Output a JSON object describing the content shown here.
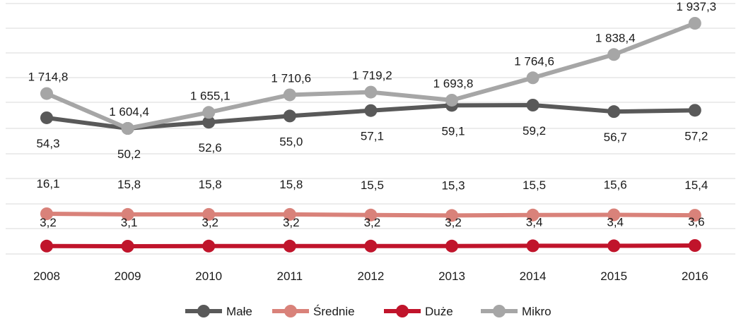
{
  "chart_data": {
    "type": "line",
    "title": "",
    "xlabel": "",
    "ylabel": "",
    "grid": true,
    "legend_position": "bottom",
    "categories": [
      "2008",
      "2009",
      "2010",
      "2011",
      "2012",
      "2013",
      "2014",
      "2015",
      "2016"
    ],
    "series": [
      {
        "name": "Małe",
        "color": "#595959",
        "values": [
          54.3,
          50.2,
          52.6,
          55.0,
          57.1,
          59.1,
          59.2,
          56.7,
          57.2
        ],
        "labels": [
          "54,3",
          "50,2",
          "52,6",
          "55,0",
          "57,1",
          "59,1",
          "59,2",
          "56,7",
          "57,2"
        ]
      },
      {
        "name": "Średnie",
        "color": "#d9827a",
        "values": [
          16.1,
          15.8,
          15.8,
          15.8,
          15.5,
          15.3,
          15.5,
          15.6,
          15.4
        ],
        "labels": [
          "16,1",
          "15,8",
          "15,8",
          "15,8",
          "15,5",
          "15,3",
          "15,5",
          "15,6",
          "15,4"
        ]
      },
      {
        "name": "Duże",
        "color": "#c0142b",
        "values": [
          3.2,
          3.1,
          3.2,
          3.2,
          3.2,
          3.2,
          3.4,
          3.4,
          3.6
        ],
        "labels": [
          "3,2",
          "3,1",
          "3,2",
          "3,2",
          "3,2",
          "3,2",
          "3,4",
          "3,4",
          "3,6"
        ]
      },
      {
        "name": "Mikro",
        "color": "#a6a6a6",
        "values": [
          1714.8,
          1604.4,
          1655.1,
          1710.6,
          1719.2,
          1693.8,
          1764.6,
          1838.4,
          1937.3
        ],
        "labels": [
          "1 714,8",
          "1 604,4",
          "1 655,1",
          "1 710,6",
          "1 719,2",
          "1 693,8",
          "1 764,6",
          "1 838,4",
          "1 937,3"
        ]
      }
    ]
  }
}
